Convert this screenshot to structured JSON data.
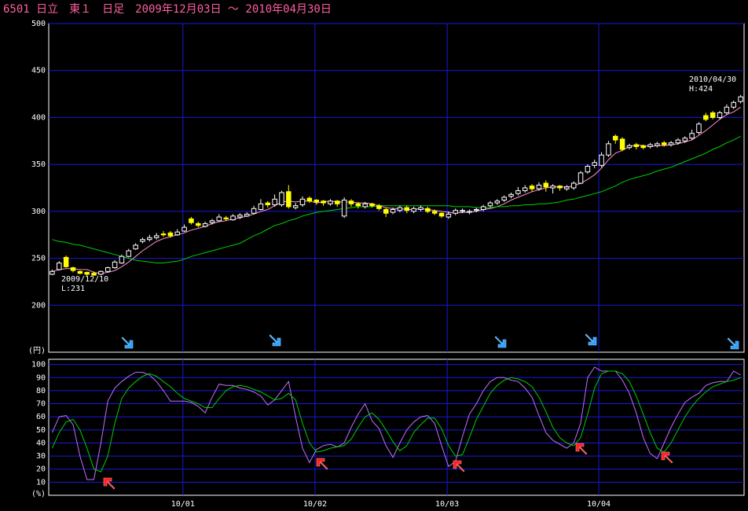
{
  "chart_data": [
    {
      "type": "candlestick",
      "title": "6501 日立　東１　日足　2009年12月03日 〜 2010年04月30日",
      "y_unit": "(円)",
      "annotations": [
        "2009/12/10",
        "L:231",
        "2010/04/30",
        "H:424"
      ],
      "xlim": [
        -0.5,
        99.5
      ],
      "xticks": [
        {
          "value": 18.8,
          "label": "10/01"
        },
        {
          "value": 37.8,
          "label": "10/02"
        },
        {
          "value": 56.8,
          "label": "10/03"
        },
        {
          "value": 78.6,
          "label": "10/04"
        }
      ],
      "ylim": [
        150,
        500
      ],
      "yticks": [
        200,
        250,
        300,
        350,
        400,
        450,
        500
      ],
      "grid": true,
      "up_color": "#ffffff",
      "down_color": "#ffff00",
      "open": [
        233,
        238,
        251,
        240,
        236,
        235,
        234,
        233,
        236,
        240,
        245,
        252,
        260,
        268,
        270,
        272,
        276,
        277,
        275,
        279,
        292,
        287,
        284,
        288,
        290,
        293,
        291,
        294,
        295,
        298,
        302,
        309,
        307,
        307,
        321,
        304,
        307,
        314,
        312,
        311,
        308,
        311,
        295,
        311,
        308,
        305,
        308,
        306,
        302,
        299,
        301,
        304,
        300,
        302,
        303,
        300,
        298,
        294,
        298,
        300,
        299,
        301,
        302,
        306,
        309,
        312,
        316,
        319,
        322,
        327,
        324,
        330,
        325,
        327,
        324,
        325,
        330,
        342,
        349,
        349,
        360,
        380,
        377,
        368,
        371,
        370,
        369,
        370,
        373,
        371,
        373,
        375,
        378,
        384,
        402,
        405,
        400,
        405,
        411,
        417
      ],
      "high": [
        238,
        247,
        253,
        241,
        237,
        236,
        236,
        237,
        241,
        248,
        254,
        260,
        266,
        272,
        275,
        277,
        279,
        279,
        281,
        286,
        294,
        289,
        289,
        292,
        297,
        295,
        297,
        298,
        299,
        306,
        313,
        311,
        318,
        322,
        328,
        309,
        316,
        316,
        313,
        312,
        313,
        312,
        315,
        313,
        310,
        310,
        309,
        308,
        304,
        304,
        306,
        306,
        305,
        306,
        305,
        302,
        299,
        300,
        303,
        303,
        302,
        304,
        307,
        311,
        313,
        317,
        320,
        326,
        328,
        329,
        331,
        333,
        329,
        328,
        328,
        332,
        343,
        350,
        355,
        363,
        375,
        382,
        379,
        372,
        373,
        371,
        373,
        374,
        375,
        375,
        378,
        380,
        387,
        395,
        405,
        407,
        407,
        414,
        418,
        424
      ],
      "low": [
        232,
        237,
        240,
        235,
        233,
        231,
        232,
        232,
        235,
        239,
        244,
        251,
        259,
        266,
        268,
        270,
        273,
        272,
        274,
        278,
        286,
        283,
        283,
        286,
        289,
        290,
        290,
        292,
        294,
        297,
        301,
        304,
        305,
        305,
        303,
        302,
        305,
        309,
        307,
        306,
        306,
        305,
        293,
        305,
        303,
        303,
        304,
        301,
        294,
        297,
        299,
        298,
        298,
        300,
        298,
        296,
        293,
        292,
        296,
        298,
        297,
        299,
        300,
        304,
        307,
        310,
        314,
        317,
        320,
        321,
        322,
        321,
        319,
        322,
        322,
        323,
        329,
        340,
        346,
        347,
        358,
        372,
        364,
        366,
        366,
        366,
        367,
        368,
        369,
        369,
        371,
        373,
        376,
        382,
        396,
        398,
        398,
        403,
        409,
        415
      ],
      "close": [
        236,
        245,
        241,
        237,
        234,
        233,
        232,
        236,
        240,
        246,
        252,
        258,
        264,
        270,
        272,
        274,
        275,
        274,
        278,
        283,
        288,
        285,
        287,
        290,
        294,
        292,
        295,
        296,
        297,
        303,
        308,
        307,
        313,
        320,
        305,
        306,
        313,
        311,
        310,
        309,
        311,
        308,
        312,
        308,
        306,
        308,
        306,
        303,
        298,
        302,
        304,
        301,
        303,
        304,
        300,
        298,
        295,
        297,
        301,
        301,
        300,
        302,
        305,
        309,
        311,
        315,
        318,
        322,
        325,
        324,
        328,
        326,
        327,
        325,
        326,
        330,
        341,
        348,
        352,
        360,
        372,
        376,
        366,
        370,
        369,
        368,
        371,
        372,
        371,
        373,
        376,
        378,
        383,
        393,
        398,
        400,
        405,
        411,
        416,
        422
      ],
      "series": [
        {
          "color": "#ff8fd0",
          "values": [
            236,
            238,
            239,
            239,
            238,
            238,
            235,
            234,
            235,
            237,
            241,
            246,
            252,
            258,
            263,
            268,
            271,
            273,
            275,
            277,
            280,
            282,
            284,
            287,
            289,
            290,
            292,
            293,
            295,
            297,
            300,
            302,
            306,
            310,
            311,
            310,
            311,
            311,
            309,
            310,
            311,
            310,
            310,
            310,
            309,
            309,
            308,
            306,
            304,
            303,
            303,
            302,
            302,
            303,
            302,
            301,
            300,
            299,
            298,
            299,
            299,
            300,
            302,
            303,
            305,
            308,
            312,
            315,
            318,
            321,
            323,
            325,
            326,
            326,
            326,
            327,
            330,
            334,
            339,
            346,
            355,
            362,
            365,
            369,
            371,
            370,
            369,
            370,
            370,
            371,
            372,
            374,
            376,
            381,
            386,
            392,
            398,
            403,
            406,
            411
          ]
        },
        {
          "color": "#00d000",
          "values": [
            270,
            268,
            267,
            265,
            264,
            262,
            260,
            258,
            256,
            254,
            252,
            250,
            248,
            247,
            246,
            245,
            245,
            246,
            247,
            249,
            252,
            254,
            256,
            258,
            260,
            262,
            264,
            266,
            270,
            274,
            277,
            281,
            285,
            287,
            290,
            292,
            295,
            297,
            299,
            300,
            301,
            302,
            303,
            304,
            305,
            305,
            305,
            306,
            306,
            306,
            306,
            306,
            306,
            306,
            306,
            306,
            306,
            306,
            305,
            305,
            305,
            304,
            304,
            304,
            305,
            305,
            306,
            306,
            307,
            307,
            308,
            308,
            309,
            310,
            312,
            313,
            315,
            317,
            319,
            321,
            324,
            327,
            331,
            334,
            336,
            338,
            340,
            343,
            345,
            347,
            350,
            353,
            356,
            359,
            362,
            366,
            369,
            373,
            376,
            380
          ]
        }
      ]
    },
    {
      "type": "line",
      "y_unit": "(%)",
      "xlim": [
        -0.5,
        99.5
      ],
      "xticks": [
        {
          "value": 18.8,
          "label": "10/01"
        },
        {
          "value": 37.8,
          "label": "10/02"
        },
        {
          "value": 56.8,
          "label": "10/03"
        },
        {
          "value": 78.6,
          "label": "10/04"
        }
      ],
      "ylim": [
        0,
        104
      ],
      "yticks": [
        10,
        20,
        30,
        40,
        50,
        60,
        70,
        80,
        90,
        100
      ],
      "grid": true,
      "series": [
        {
          "color": "#c070ff",
          "values": [
            48,
            60,
            61,
            54,
            30,
            12,
            12,
            40,
            72,
            82,
            87,
            91,
            94,
            94,
            92,
            87,
            80,
            72,
            72,
            72,
            71,
            68,
            63,
            75,
            85,
            84,
            84,
            82,
            81,
            79,
            76,
            69,
            73,
            80,
            87,
            60,
            36,
            25,
            35,
            38,
            39,
            37,
            40,
            52,
            62,
            70,
            57,
            51,
            38,
            29,
            40,
            50,
            56,
            60,
            61,
            55,
            38,
            22,
            26,
            45,
            62,
            70,
            80,
            87,
            90,
            90,
            88,
            87,
            82,
            75,
            61,
            48,
            42,
            39,
            36,
            40,
            55,
            90,
            98,
            95,
            95,
            95,
            88,
            78,
            63,
            44,
            32,
            28,
            40,
            52,
            62,
            71,
            75,
            78,
            84,
            86,
            87,
            87,
            95,
            92
          ]
        },
        {
          "color": "#00d000",
          "values": [
            36,
            48,
            56,
            58,
            50,
            36,
            20,
            18,
            30,
            55,
            74,
            82,
            87,
            91,
            93,
            91,
            87,
            83,
            78,
            74,
            72,
            70,
            67,
            67,
            74,
            80,
            83,
            84,
            83,
            81,
            79,
            76,
            73,
            74,
            78,
            73,
            55,
            40,
            33,
            34,
            36,
            37,
            38,
            43,
            52,
            60,
            63,
            58,
            50,
            41,
            34,
            38,
            48,
            54,
            59,
            59,
            51,
            38,
            30,
            31,
            44,
            58,
            68,
            78,
            84,
            88,
            90,
            89,
            87,
            83,
            75,
            64,
            52,
            44,
            40,
            38,
            44,
            62,
            82,
            93,
            95,
            95,
            93,
            87,
            76,
            62,
            48,
            36,
            33,
            40,
            50,
            60,
            68,
            74,
            79,
            83,
            85,
            87,
            88,
            90
          ]
        }
      ]
    }
  ]
}
